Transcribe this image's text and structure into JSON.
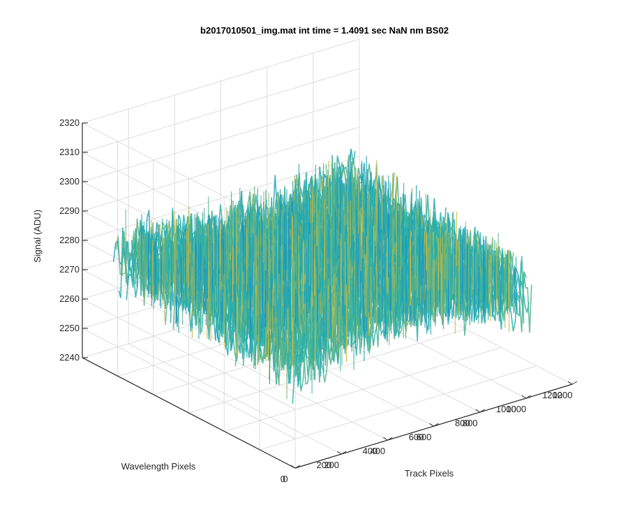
{
  "chart_data": {
    "type": "surface",
    "title": "b2017010501_img.mat int time = 1.4091 sec  NaN nm BS02",
    "xlabel": "Track Pixels",
    "ylabel": "Wavelength Pixels",
    "zlabel": "Signal (ADU)",
    "xlim": [
      0,
      1200
    ],
    "ylim": [
      0,
      1200
    ],
    "zlim": [
      2240,
      2320
    ],
    "x_ticks": [
      0,
      200,
      400,
      600,
      800,
      1000,
      1200
    ],
    "y_ticks": [
      0,
      200,
      400,
      600,
      800,
      1000,
      1200
    ],
    "z_ticks": [
      2240,
      2250,
      2260,
      2270,
      2280,
      2290,
      2300,
      2310,
      2320
    ],
    "grid": true,
    "colormap": "parula",
    "data_extent": {
      "x": [
        0,
        1024
      ],
      "y": [
        0,
        1024
      ]
    },
    "surface_level_range": [
      2262,
      2292
    ],
    "noise_amplitude": 10
  },
  "colors": {
    "axis": "#262626",
    "grid": "#dddddd",
    "low": "#1b8ec9",
    "mid": "#23b0ad",
    "high": "#e0bb30"
  }
}
